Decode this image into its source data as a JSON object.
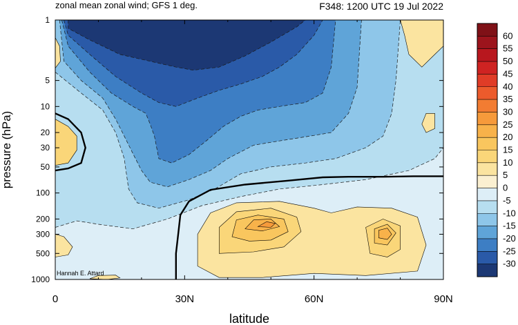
{
  "chart_data": {
    "type": "heatmap",
    "title_left": "zonal mean zonal wind; GFS 1 deg.",
    "title_right": "F348: 1200 UTC 19 Jul 2022",
    "xlabel": "latitude",
    "ylabel": "pressure (hPa)",
    "credit": "Hannah E. Attard",
    "x_ticks": [
      "0",
      "30N",
      "60N",
      "90N"
    ],
    "x_tick_values": [
      0,
      30,
      60,
      90
    ],
    "xlim": [
      0,
      90
    ],
    "y_ticks": [
      "1",
      "5",
      "10",
      "20",
      "30",
      "50",
      "100",
      "200",
      "300",
      "500",
      "1000"
    ],
    "y_tick_values": [
      1,
      5,
      10,
      20,
      30,
      50,
      100,
      200,
      300,
      500,
      1000
    ],
    "ylim": [
      1,
      1000
    ],
    "y_scale": "log",
    "y_inverted": true,
    "colorbar": {
      "labels": [
        "60",
        "55",
        "50",
        "45",
        "40",
        "35",
        "30",
        "25",
        "20",
        "15",
        "10",
        "5",
        "0",
        "-5",
        "-10",
        "-15",
        "-20",
        "-25",
        "-30"
      ],
      "colors": [
        "#7f1117",
        "#9c141c",
        "#b8171e",
        "#cf2322",
        "#e03c27",
        "#ec5b2c",
        "#f27c32",
        "#f69a3b",
        "#f8b24a",
        "#f9c65e",
        "#fad679",
        "#fbe4a0",
        "#fbf0d1",
        "#ddeef7",
        "#b7def0",
        "#8ec6e9",
        "#5fa4d8",
        "#3d7ec4",
        "#2a5aa8",
        "#1c3874"
      ]
    },
    "contours": [
      {
        "level": -30,
        "color": "#1c3874",
        "points": [
          [
            3,
            1
          ],
          [
            3,
            1.25
          ],
          [
            8,
            1.7
          ],
          [
            15,
            2.5
          ],
          [
            22,
            3
          ],
          [
            28,
            3.5
          ],
          [
            32,
            3.8
          ],
          [
            38,
            3.5
          ],
          [
            44,
            2.6
          ],
          [
            50,
            1.8
          ],
          [
            56,
            1.2
          ],
          [
            58,
            1
          ]
        ]
      },
      {
        "level": -25,
        "color": "#2a5aa8",
        "points": [
          [
            2,
            1
          ],
          [
            3,
            1.5
          ],
          [
            8,
            2.5
          ],
          [
            14,
            4.5
          ],
          [
            20,
            7
          ],
          [
            24,
            9
          ],
          [
            28,
            10
          ],
          [
            33,
            8
          ],
          [
            38,
            6.5
          ],
          [
            43,
            5.5
          ],
          [
            48,
            4.5
          ],
          [
            52,
            3.5
          ],
          [
            56,
            2.5
          ],
          [
            60,
            1.5
          ],
          [
            62,
            1
          ]
        ]
      },
      {
        "level": -20,
        "color": "#3d7ec4",
        "points": [
          [
            1.5,
            1
          ],
          [
            3,
            2
          ],
          [
            8,
            4
          ],
          [
            13,
            7
          ],
          [
            18,
            10
          ],
          [
            21,
            12
          ],
          [
            22,
            16
          ],
          [
            23,
            22
          ],
          [
            24,
            40
          ],
          [
            27,
            45
          ],
          [
            31,
            36
          ],
          [
            35,
            25
          ],
          [
            39,
            17
          ],
          [
            43,
            13
          ],
          [
            47,
            11
          ],
          [
            52,
            10
          ],
          [
            58,
            9
          ],
          [
            62,
            7
          ],
          [
            64,
            3.5
          ],
          [
            65,
            1
          ]
        ]
      },
      {
        "level": -15,
        "color": "#5fa4d8",
        "points": [
          [
            1,
            1
          ],
          [
            2,
            3
          ],
          [
            6,
            5
          ],
          [
            11,
            8
          ],
          [
            14,
            14
          ],
          [
            16,
            22
          ],
          [
            18,
            35
          ],
          [
            20,
            55
          ],
          [
            22,
            75
          ],
          [
            26,
            85
          ],
          [
            31,
            70
          ],
          [
            36,
            55
          ],
          [
            40,
            40
          ],
          [
            46,
            28
          ],
          [
            52,
            25
          ],
          [
            59,
            22
          ],
          [
            64,
            20
          ],
          [
            68,
            12
          ],
          [
            70,
            6
          ],
          [
            71,
            1
          ]
        ]
      },
      {
        "level": -10,
        "color": "#8ec6e9",
        "points": [
          [
            0,
            4
          ],
          [
            6,
            7
          ],
          [
            11,
            11
          ],
          [
            14,
            20
          ],
          [
            16,
            40
          ],
          [
            17,
            90
          ],
          [
            19,
            130
          ],
          [
            24,
            150
          ],
          [
            31,
            120
          ],
          [
            37,
            90
          ],
          [
            43,
            60
          ],
          [
            50,
            50
          ],
          [
            58,
            45
          ],
          [
            65,
            40
          ],
          [
            72,
            30
          ],
          [
            76,
            22
          ],
          [
            78,
            12
          ],
          [
            79,
            5
          ],
          [
            80,
            1
          ]
        ]
      },
      {
        "level": -5,
        "color": "#b7def0",
        "points": [
          [
            0,
            250
          ],
          [
            5,
            210
          ],
          [
            10,
            230
          ],
          [
            18,
            260
          ],
          [
            26,
            200
          ],
          [
            34,
            140
          ],
          [
            43,
            110
          ],
          [
            52,
            90
          ],
          [
            62,
            80
          ],
          [
            72,
            70
          ],
          [
            82,
            55
          ],
          [
            88,
            40
          ],
          [
            90,
            30
          ]
        ]
      }
    ],
    "zero_lines": [
      {
        "label": "subtropical",
        "points": [
          [
            0,
            12
          ],
          [
            3,
            14
          ],
          [
            6,
            20
          ],
          [
            7,
            30
          ],
          [
            6,
            45
          ],
          [
            3,
            52
          ],
          [
            0,
            55
          ]
        ]
      },
      {
        "label": "midlatitude",
        "points": [
          [
            28,
            1000
          ],
          [
            28,
            500
          ],
          [
            28.5,
            300
          ],
          [
            29,
            180
          ],
          [
            31,
            125
          ],
          [
            36,
            92
          ],
          [
            44,
            80
          ],
          [
            54,
            72
          ],
          [
            62,
            66
          ],
          [
            68,
            65
          ],
          [
            76,
            65
          ],
          [
            83,
            64
          ],
          [
            88,
            64
          ],
          [
            90,
            64
          ]
        ]
      }
    ],
    "positive_regions": [
      {
        "label": "subtropical-easterly",
        "color": "#fad679",
        "points": [
          [
            0,
            14
          ],
          [
            3,
            17
          ],
          [
            5,
            22
          ],
          [
            5,
            32
          ],
          [
            3,
            45
          ],
          [
            0,
            48
          ]
        ]
      },
      {
        "label": "jet-outer-5",
        "color": "#fbe4a0",
        "points": [
          [
            33,
            700
          ],
          [
            33,
            300
          ],
          [
            36,
            170
          ],
          [
            42,
            130
          ],
          [
            52,
            125
          ],
          [
            60,
            150
          ],
          [
            64,
            170
          ],
          [
            70,
            145
          ],
          [
            78,
            150
          ],
          [
            84,
            190
          ],
          [
            86,
            400
          ],
          [
            84,
            800
          ],
          [
            72,
            900
          ],
          [
            60,
            850
          ],
          [
            48,
            950
          ],
          [
            38,
            950
          ]
        ]
      },
      {
        "label": "jet-10",
        "color": "#fad679",
        "points": [
          [
            38,
            500
          ],
          [
            38,
            250
          ],
          [
            42,
            165
          ],
          [
            50,
            150
          ],
          [
            56,
            190
          ],
          [
            57,
            280
          ],
          [
            53,
            420
          ],
          [
            46,
            480
          ]
        ]
      },
      {
        "label": "jet-15",
        "color": "#f9c65e",
        "points": [
          [
            41,
            320
          ],
          [
            42,
            205
          ],
          [
            47,
            180
          ],
          [
            53,
            200
          ],
          [
            54,
            280
          ],
          [
            50,
            350
          ],
          [
            45,
            360
          ]
        ]
      },
      {
        "label": "jet-20",
        "color": "#f8b24a",
        "points": [
          [
            44,
            260
          ],
          [
            46,
            205
          ],
          [
            50,
            200
          ],
          [
            52,
            245
          ],
          [
            48,
            275
          ]
        ]
      },
      {
        "label": "jet-25",
        "color": "#f69a3b",
        "points": [
          [
            47,
            245
          ],
          [
            49,
            215
          ],
          [
            51,
            225
          ],
          [
            50,
            250
          ]
        ]
      },
      {
        "label": "polar-10",
        "color": "#fad679",
        "points": [
          [
            73,
            500
          ],
          [
            72,
            250
          ],
          [
            76,
            200
          ],
          [
            80,
            240
          ],
          [
            80,
            450
          ],
          [
            77,
            550
          ]
        ]
      },
      {
        "label": "polar-15",
        "color": "#f9c65e",
        "points": [
          [
            74,
            380
          ],
          [
            74,
            260
          ],
          [
            77,
            230
          ],
          [
            79,
            290
          ],
          [
            77,
            400
          ]
        ]
      },
      {
        "label": "polar-20",
        "color": "#f8b24a",
        "points": [
          [
            75,
            330
          ],
          [
            75,
            270
          ],
          [
            77,
            255
          ],
          [
            78,
            300
          ],
          [
            77,
            345
          ]
        ]
      },
      {
        "label": "top-right-patch",
        "color": "#fbe4a0",
        "points": [
          [
            80,
            1
          ],
          [
            81,
            1.5
          ],
          [
            82,
            2.5
          ],
          [
            85,
            3.5
          ],
          [
            88,
            2.5
          ],
          [
            90,
            2
          ],
          [
            90,
            1
          ]
        ]
      },
      {
        "label": "right-edge-patch",
        "color": "#fbe4a0",
        "points": [
          [
            86,
            12
          ],
          [
            85,
            16
          ],
          [
            86,
            20
          ],
          [
            88,
            18
          ],
          [
            88,
            12
          ]
        ]
      },
      {
        "label": "left-edge-patch",
        "color": "#fbe4a0",
        "points": [
          [
            0,
            1.6
          ],
          [
            1,
            2
          ],
          [
            1.2,
            3
          ],
          [
            0,
            3.6
          ]
        ]
      },
      {
        "label": "surface-patch",
        "color": "#fbe4a0",
        "points": [
          [
            8,
            980
          ],
          [
            10,
            900
          ],
          [
            14,
            890
          ],
          [
            15,
            960
          ],
          [
            12,
            1000
          ]
        ]
      },
      {
        "label": "low-left-patch",
        "color": "#fbe4a0",
        "points": [
          [
            0,
            300
          ],
          [
            2,
            320
          ],
          [
            4,
            420
          ],
          [
            3,
            520
          ],
          [
            0,
            550
          ]
        ]
      }
    ]
  }
}
